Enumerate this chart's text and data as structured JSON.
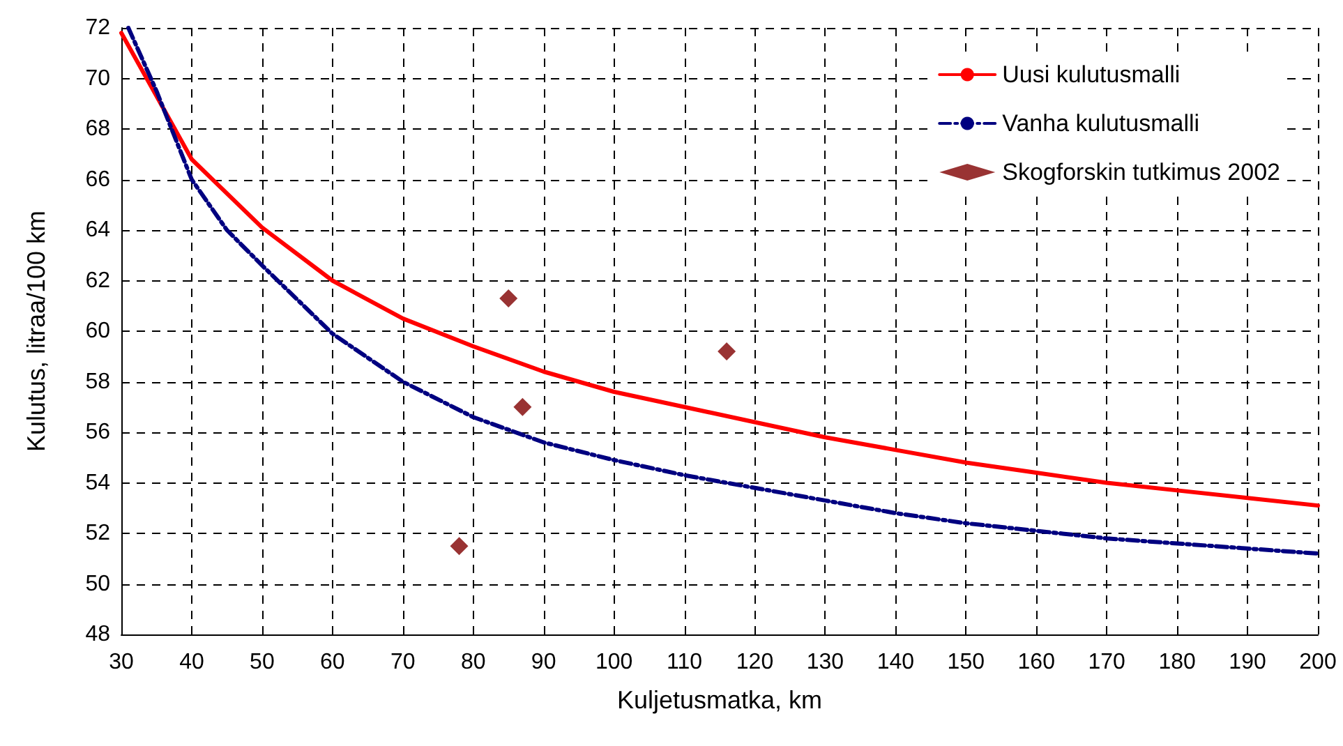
{
  "chart_data": {
    "type": "line",
    "xlabel": "Kuljetusmatka, km",
    "ylabel": "Kulutus, litraa/100 km",
    "xlim": [
      30,
      200
    ],
    "xticks": [
      30,
      40,
      50,
      60,
      70,
      80,
      90,
      100,
      110,
      120,
      130,
      140,
      150,
      160,
      170,
      180,
      190,
      200
    ],
    "ylim": [
      48,
      72
    ],
    "yticks": [
      48,
      50,
      52,
      54,
      56,
      58,
      60,
      62,
      64,
      66,
      68,
      70,
      72
    ],
    "grid": true,
    "legend": "top right",
    "series": [
      {
        "name": "Uusi kulutusmalli",
        "color": "#ff0000",
        "line_style": "solid",
        "marker": "none",
        "x": [
          30,
          35,
          40,
          50,
          60,
          70,
          80,
          90,
          100,
          110,
          120,
          130,
          140,
          150,
          160,
          170,
          180,
          190,
          200
        ],
        "values": [
          71.8,
          69.3,
          66.8,
          64.1,
          62.0,
          60.5,
          59.4,
          58.4,
          57.6,
          57.0,
          56.4,
          55.8,
          55.3,
          54.8,
          54.4,
          54.0,
          53.7,
          53.4,
          53.1
        ]
      },
      {
        "name": "Vanha kulutusmalli",
        "color": "#000080",
        "line_style": "dashed",
        "marker": "none",
        "x": [
          31,
          35,
          40,
          45,
          50,
          60,
          70,
          80,
          90,
          100,
          110,
          120,
          130,
          140,
          150,
          160,
          170,
          180,
          190,
          200
        ],
        "values": [
          72.0,
          69.5,
          66.0,
          64.0,
          62.6,
          59.9,
          58.0,
          56.6,
          55.6,
          54.9,
          54.3,
          53.8,
          53.3,
          52.8,
          52.4,
          52.1,
          51.8,
          51.6,
          51.4,
          51.2
        ]
      },
      {
        "name": "Skogforskin tutkimus 2002",
        "type": "scatter",
        "color": "#800000",
        "marker": "diamond",
        "x": [
          78,
          85,
          87,
          116
        ],
        "values": [
          51.5,
          61.3,
          57.0,
          59.2
        ]
      }
    ]
  }
}
